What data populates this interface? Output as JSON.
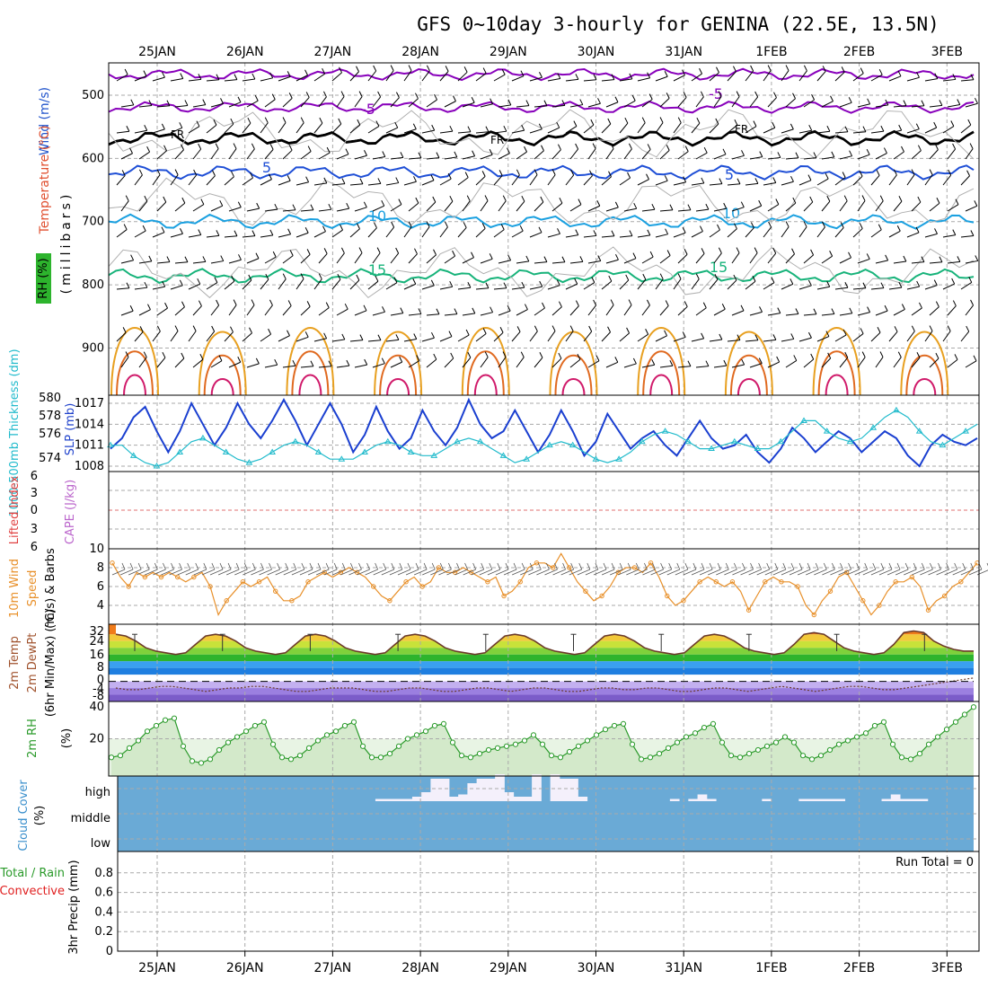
{
  "header": {
    "title": "GFS 0~10day 3-hourly for GENINA (22.5E, 13.5N)"
  },
  "time_axis": {
    "day_labels": [
      "25JAN",
      "26JAN",
      "27JAN",
      "28JAN",
      "29JAN",
      "30JAN",
      "31JAN",
      "1FEB",
      "2FEB",
      "3FEB"
    ]
  },
  "labels": {
    "p1_wind": "Wind (m/s)",
    "p1_temp": "Temperature (°C)",
    "p1_rh": "RH (%)",
    "p1_mb": "(millibars)",
    "p2_thick": "1000-500mb Thickness (dm)",
    "p2_slp": "SLP (mb)",
    "p3_li": "Lifted Index",
    "p3_cape": "CAPE (J/kg)",
    "p4_a": "10m Wind",
    "p4_b": "Speed",
    "p4_c": "(m/s) & Barbs",
    "p5_a": "2m Temp",
    "p5_b": "2m DewPt",
    "p5_c": "(6hr Min/Max) (°C)",
    "p6_a": "2m RH",
    "p6_b": "(%)",
    "p7_a": "Cloud Cover",
    "p7_b": "(%)",
    "p7_high": "high",
    "p7_middle": "middle",
    "p7_low": "low",
    "p8_a": "Total / Rain",
    "p8_b": "Convective",
    "p8_c": "3hr Precip (mm)",
    "p8_run": "Run Total = 0",
    "fr1": "FR",
    "fr2": "FR",
    "fr3": "FR"
  },
  "chart_data": [
    {
      "panel": "upper-air",
      "type": "line",
      "ylabel": "(millibars)",
      "yticks": [
        500,
        600,
        700,
        800,
        900
      ],
      "ylim": [
        1000,
        450
      ],
      "temperature_isotherms": [
        {
          "name": "-5",
          "color": "#8800bb",
          "pressure": [
            467,
            519
          ]
        },
        {
          "name": "FR",
          "color": "#000000",
          "pressure": [
            568
          ]
        },
        {
          "name": "5",
          "color": "#1f4fd6",
          "pressure": [
            622
          ]
        },
        {
          "name": "10",
          "color": "#1aa0e0",
          "pressure": [
            700
          ]
        },
        {
          "name": "15",
          "color": "#17b37a",
          "pressure": [
            786
          ]
        }
      ],
      "contour_labels": [
        "-5",
        "-5",
        "FR",
        "FR",
        "FR",
        "5",
        "5",
        "10",
        "10",
        "15",
        "15",
        "10",
        "10",
        "10"
      ]
    },
    {
      "panel": "thickness-slp",
      "type": "line",
      "y_left_ticks": [
        574,
        576,
        578,
        580
      ],
      "y_right_ticks": [
        1008,
        1011,
        1014,
        1017
      ],
      "series": [
        {
          "name": "SLP (mb)",
          "color": "#1a3fd0",
          "values": [
            1010.5,
            1012,
            1015,
            1016.5,
            1013,
            1010,
            1013,
            1017,
            1014,
            1011,
            1013.5,
            1017,
            1014,
            1012,
            1014.5,
            1017.5,
            1014.5,
            1011,
            1014,
            1017,
            1014,
            1010,
            1012.5,
            1016.5,
            1013,
            1010.5,
            1012,
            1016,
            1013,
            1011,
            1013.5,
            1017.5,
            1014,
            1012,
            1013,
            1016,
            1013,
            1010,
            1012.5,
            1016,
            1013,
            1009.5,
            1011.5,
            1015.5,
            1013,
            1010.5,
            1012,
            1013,
            1011,
            1009.5,
            1012,
            1014.5,
            1012,
            1010.5,
            1011,
            1012.5,
            1010,
            1008.5,
            1010.5,
            1013.5,
            1012,
            1010,
            1011.5,
            1013,
            1012,
            1010,
            1011.5,
            1013,
            1012,
            1009.5,
            1008,
            1011,
            1012.5,
            1011.5,
            1011,
            1012
          ]
        },
        {
          "name": "1000-500mb Thickness (dm)",
          "color": "#22bbcc",
          "values": [
            1011,
            1011,
            1009.5,
            1008.5,
            1008,
            1008.5,
            1010,
            1011.5,
            1012,
            1011,
            1010,
            1009,
            1008.5,
            1009,
            1010,
            1011,
            1011.5,
            1011,
            1010,
            1009,
            1009,
            1009,
            1010,
            1011,
            1011.5,
            1011,
            1010,
            1009.5,
            1009.5,
            1010.5,
            1011.5,
            1012,
            1011.5,
            1010.5,
            1009.5,
            1008.5,
            1009,
            1010,
            1011,
            1011.5,
            1011,
            1010,
            1009,
            1008.5,
            1009,
            1010,
            1011.5,
            1012.5,
            1013,
            1012.5,
            1011.5,
            1010.5,
            1010.5,
            1011,
            1011.5,
            1011,
            1010.5,
            1010.5,
            1011.5,
            1013,
            1014.5,
            1014.5,
            1013,
            1012,
            1011.5,
            1012,
            1013.5,
            1015,
            1016,
            1015,
            1013,
            1011.5,
            1011,
            1012,
            1013,
            1014
          ]
        }
      ]
    },
    {
      "panel": "lifted-index-cape",
      "type": "line",
      "yticks": [
        -6,
        -3,
        0,
        3,
        6
      ],
      "series": []
    },
    {
      "panel": "10m-wind",
      "type": "line",
      "yticks": [
        4,
        6,
        8,
        10
      ],
      "ylim": [
        2,
        10
      ],
      "series": [
        {
          "name": "10m Wind Speed",
          "color": "#e8902a",
          "values": [
            8.5,
            7,
            6,
            7.5,
            7,
            7.5,
            7,
            7.5,
            7,
            6.5,
            7,
            7.5,
            6,
            3,
            4.5,
            5.5,
            6.5,
            6,
            6.5,
            7,
            5.5,
            4.5,
            4.5,
            5,
            6.5,
            7,
            7.5,
            7,
            7.5,
            8,
            7.5,
            7,
            6,
            5,
            4.5,
            5.5,
            6.5,
            7,
            6,
            6.5,
            8,
            7.5,
            7.5,
            8,
            7.5,
            7,
            6.5,
            7,
            5,
            5.5,
            6.5,
            8,
            8.5,
            8.5,
            8,
            9.5,
            8,
            6.5,
            5.5,
            4.5,
            5,
            6,
            7.5,
            8,
            8,
            7.5,
            8.5,
            7,
            5,
            4,
            4.5,
            5.5,
            6.5,
            7,
            6.5,
            6,
            6.5,
            5.5,
            3.5,
            5,
            6.5,
            7,
            6.5,
            6.5,
            6,
            4,
            3,
            4.5,
            5.5,
            7,
            7.5,
            6,
            4.5,
            3,
            4,
            5.5,
            6.5,
            6.5,
            7,
            6,
            3.5,
            4.5,
            5,
            6,
            6.5,
            7.5,
            8.5
          ]
        }
      ]
    },
    {
      "panel": "2m-temp",
      "type": "area",
      "yticks": [
        -8,
        -4,
        0,
        8,
        16,
        24,
        32
      ],
      "ylim": [
        -12,
        34
      ],
      "series": [
        {
          "name": "2m Temp",
          "color": "#6b3a2a",
          "values": [
            28,
            27,
            24,
            20,
            18,
            17,
            16,
            17,
            22,
            27,
            28,
            27,
            24,
            20,
            18,
            17,
            16,
            17,
            22,
            27,
            28,
            27,
            24,
            20,
            18,
            17,
            16,
            17,
            22,
            27,
            28,
            27,
            24,
            20,
            18,
            17,
            16,
            17,
            22,
            27,
            28,
            27,
            24,
            20,
            18,
            17,
            16,
            17,
            22,
            27,
            28,
            27,
            24,
            20,
            18,
            17,
            16,
            17,
            22,
            27,
            28,
            27,
            24,
            20,
            18,
            17,
            16,
            17,
            22,
            28,
            29,
            28,
            24,
            20,
            18,
            17,
            16,
            17,
            22,
            29,
            30,
            29,
            24,
            21,
            19,
            18,
            18
          ]
        },
        {
          "name": "2m DewPt",
          "color": "#6b3a2a",
          "values": [
            -4,
            -5,
            -5,
            -4,
            -3,
            -3,
            -4,
            -5,
            -6,
            -5,
            -4,
            -4,
            -3,
            -3,
            -4,
            -5,
            -6,
            -6,
            -5,
            -4,
            -4,
            -4,
            -5,
            -6,
            -6,
            -5,
            -4,
            -4,
            -5,
            -6,
            -6,
            -5,
            -4,
            -4,
            -5,
            -6,
            -5,
            -4,
            -4,
            -5,
            -6,
            -6,
            -5,
            -4,
            -4,
            -5,
            -5,
            -4,
            -4,
            -5,
            -6,
            -6,
            -5,
            -4,
            -4,
            -5,
            -6,
            -5,
            -4,
            -3,
            -4,
            -5,
            -6,
            -5,
            -4,
            -3,
            -3,
            -4,
            -5,
            -5,
            -4,
            -3,
            -2,
            -1,
            0,
            1,
            2
          ]
        }
      ]
    },
    {
      "panel": "2m-rh",
      "type": "area",
      "yticks": [
        20,
        40
      ],
      "ylim": [
        0,
        40
      ],
      "series": [
        {
          "name": "2m RH",
          "color": "#2a9a2a",
          "values": [
            10,
            11,
            15,
            19,
            24,
            27,
            30,
            31,
            16,
            8,
            7,
            9,
            14,
            18,
            21,
            24,
            27,
            29,
            17,
            10,
            9,
            11,
            15,
            19,
            22,
            24,
            27,
            29,
            16,
            10,
            10,
            12,
            16,
            20,
            22,
            24,
            27,
            28,
            18,
            11,
            10,
            12,
            14,
            15,
            16,
            17,
            19,
            22,
            17,
            11,
            10,
            13,
            16,
            19,
            22,
            25,
            27,
            28,
            17,
            9,
            10,
            12,
            15,
            18,
            21,
            23,
            26,
            28,
            18,
            11,
            10,
            12,
            14,
            16,
            18,
            21,
            18,
            11,
            9,
            11,
            14,
            17,
            19,
            21,
            23,
            27,
            29,
            17,
            10,
            9,
            12,
            17,
            21,
            25,
            29,
            33,
            37
          ]
        }
      ]
    },
    {
      "panel": "cloud-cover",
      "type": "bar",
      "yticks": [
        "low",
        "middle",
        "high"
      ],
      "series": [
        {
          "name": "high cloud",
          "color": "#f4f0fb",
          "values": [
            0,
            0,
            0,
            0,
            0,
            0,
            0,
            0,
            0,
            0,
            0,
            0,
            0,
            0,
            0,
            0,
            0,
            0,
            0,
            0,
            0,
            0,
            0,
            0,
            0,
            0,
            0,
            0,
            1,
            1,
            1,
            1,
            2,
            4,
            10,
            10,
            2,
            3,
            8,
            10,
            10,
            12,
            4,
            2,
            2,
            12,
            0,
            12,
            10,
            10,
            2,
            0,
            0,
            0,
            0,
            0,
            0,
            0,
            0,
            0,
            1,
            0,
            1,
            3,
            1,
            0,
            0,
            0,
            0,
            0,
            1,
            0,
            0,
            0,
            1,
            1,
            1,
            1,
            1,
            0,
            0,
            0,
            0,
            1,
            3,
            1,
            1,
            1,
            0,
            0,
            0,
            0,
            0
          ]
        }
      ]
    },
    {
      "panel": "3hr-precip",
      "type": "bar",
      "yticks": [
        0,
        0.2,
        0.4,
        0.6,
        0.8
      ],
      "ylim": [
        0,
        1
      ],
      "series": [
        {
          "name": "Total / Rain",
          "color": "#2a9a2a",
          "values": []
        },
        {
          "name": "Convective",
          "color": "#e02020",
          "values": []
        }
      ]
    }
  ]
}
